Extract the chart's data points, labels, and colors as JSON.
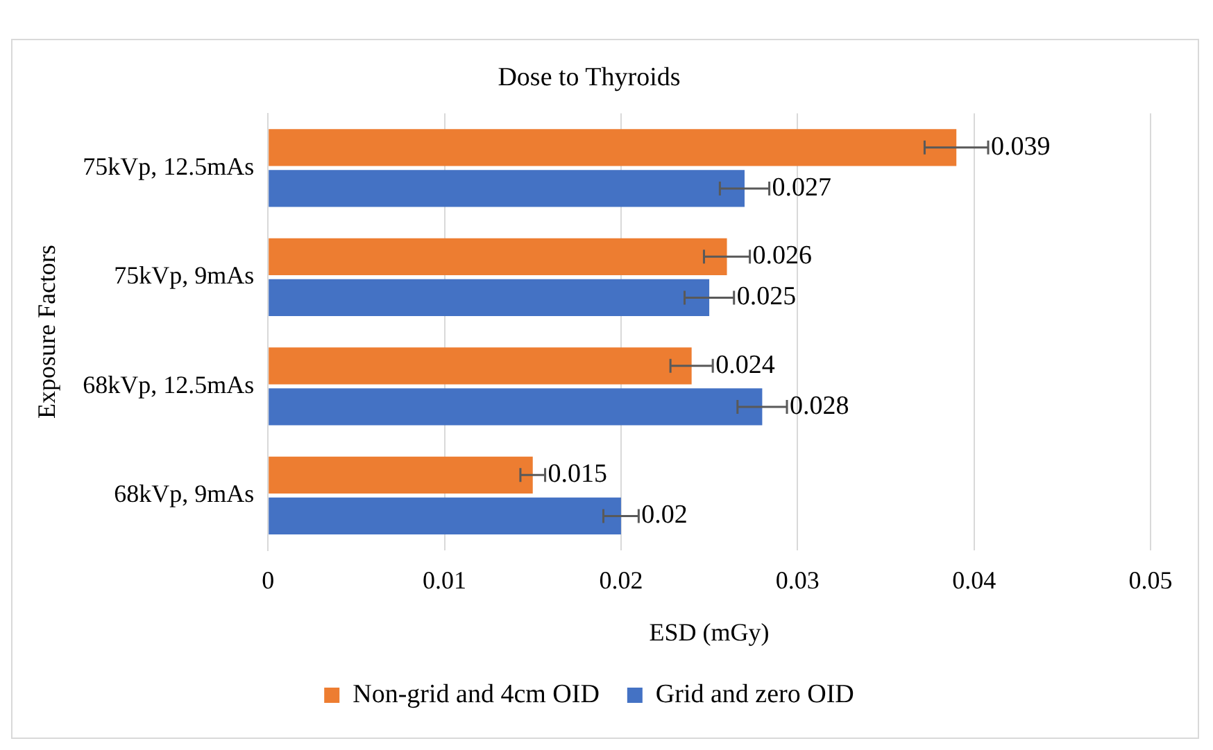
{
  "chart_data": {
    "type": "bar",
    "orientation": "horizontal",
    "title": "Dose to Thyroids",
    "xlabel": "ESD (mGy)",
    "ylabel": "Exposure Factors",
    "categories": [
      "75kVp, 12.5mAs",
      "75kVp, 9mAs",
      "68kVp, 12.5mAs",
      "68kVp, 9mAs"
    ],
    "series": [
      {
        "name": "Non-grid and 4cm OID",
        "color": "#ed7d31",
        "values": [
          0.039,
          0.026,
          0.024,
          0.015
        ],
        "errors": [
          0.0018,
          0.0013,
          0.0012,
          0.0007
        ]
      },
      {
        "name": "Grid and zero OID",
        "color": "#4472c4",
        "values": [
          0.027,
          0.025,
          0.028,
          0.02
        ],
        "errors": [
          0.0014,
          0.0014,
          0.0014,
          0.001
        ]
      }
    ],
    "xlim": [
      0,
      0.05
    ],
    "xticks": [
      0,
      0.01,
      0.02,
      0.03,
      0.04,
      0.05
    ],
    "grid": "x",
    "legend": "bottom",
    "data_labels": true
  }
}
